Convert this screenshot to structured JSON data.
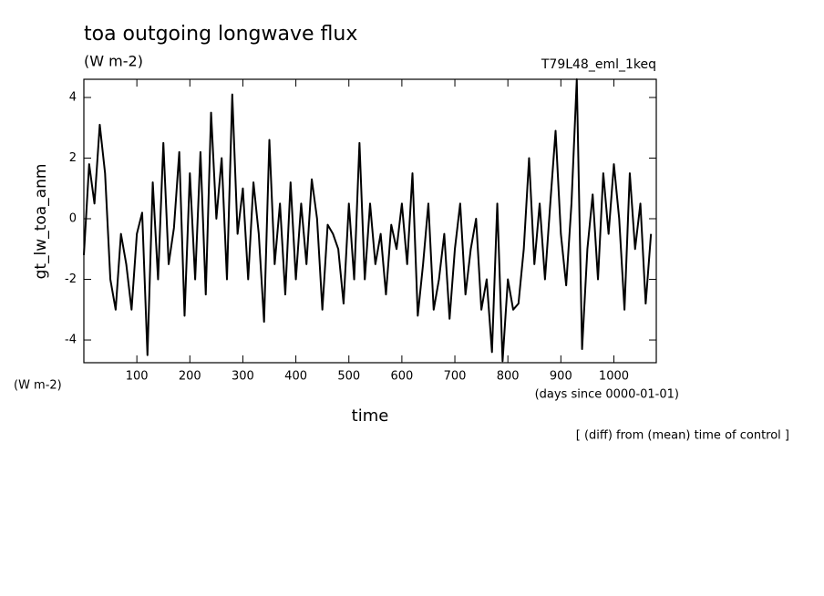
{
  "chart_data": {
    "type": "line",
    "title": "toa outgoing longwave flux",
    "subtitle": "(W m-2)",
    "run_label": "T79L48_eml_1keq",
    "ylabel": "gt_lw_toa_anm",
    "y_units": "(W m-2)",
    "xlabel": "time",
    "x_units": "(days since 0000-01-01)",
    "annotation": "[ (diff) from (mean) time of control ]",
    "xlim": [
      0,
      1080
    ],
    "ylim": [
      -4.75,
      4.6
    ],
    "xticks": [
      100,
      200,
      300,
      400,
      500,
      600,
      700,
      800,
      900,
      1000
    ],
    "yticks": [
      -4,
      -2,
      0,
      2,
      4
    ],
    "grid": false,
    "color": "#000000",
    "x": [
      0,
      10,
      20,
      30,
      40,
      50,
      60,
      70,
      80,
      90,
      100,
      110,
      120,
      130,
      140,
      150,
      160,
      170,
      180,
      190,
      200,
      210,
      220,
      230,
      240,
      250,
      260,
      270,
      280,
      290,
      300,
      310,
      320,
      330,
      340,
      350,
      360,
      370,
      380,
      390,
      400,
      410,
      420,
      430,
      440,
      450,
      460,
      470,
      480,
      490,
      500,
      510,
      520,
      530,
      540,
      550,
      560,
      570,
      580,
      590,
      600,
      610,
      620,
      630,
      640,
      650,
      660,
      670,
      680,
      690,
      700,
      710,
      720,
      730,
      740,
      750,
      760,
      770,
      780,
      790,
      800,
      810,
      820,
      830,
      840,
      850,
      860,
      870,
      880,
      890,
      900,
      910,
      920,
      930,
      940,
      950,
      960,
      970,
      980,
      990,
      1000,
      1010,
      1020,
      1030,
      1040,
      1050,
      1060,
      1070
    ],
    "values": [
      -1.2,
      1.8,
      0.5,
      3.1,
      1.5,
      -2.0,
      -3.0,
      -0.5,
      -1.5,
      -3.0,
      -0.5,
      0.2,
      -4.5,
      1.2,
      -2.0,
      2.5,
      -1.5,
      -0.3,
      2.2,
      -3.2,
      1.5,
      -2.0,
      2.2,
      -2.5,
      3.5,
      0.0,
      2.0,
      -2.0,
      4.1,
      -0.5,
      1.0,
      -2.0,
      1.2,
      -0.5,
      -3.4,
      2.6,
      -1.5,
      0.5,
      -2.5,
      1.2,
      -2.0,
      0.5,
      -1.5,
      1.3,
      0.0,
      -3.0,
      -0.2,
      -0.5,
      -1.0,
      -2.8,
      0.5,
      -2.0,
      2.5,
      -2.0,
      0.5,
      -1.5,
      -0.5,
      -2.5,
      -0.2,
      -1.0,
      0.5,
      -1.5,
      1.5,
      -3.2,
      -1.5,
      0.5,
      -3.0,
      -2.0,
      -0.5,
      -3.3,
      -1.0,
      0.5,
      -2.5,
      -1.0,
      0.0,
      -3.0,
      -2.0,
      -4.4,
      0.5,
      -4.7,
      -2.0,
      -3.0,
      -2.8,
      -1.0,
      2.0,
      -1.5,
      0.5,
      -2.0,
      0.5,
      2.9,
      -0.5,
      -2.2,
      0.5,
      4.6,
      -4.3,
      -1.0,
      0.8,
      -2.0,
      1.5,
      -0.5,
      1.8,
      0.0,
      -3.0,
      1.5,
      -1.0,
      0.5,
      -2.8,
      -0.5
    ]
  }
}
